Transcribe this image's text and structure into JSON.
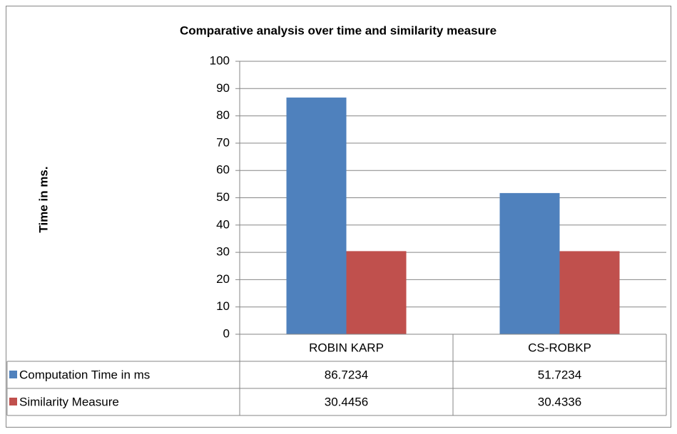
{
  "chart_data": {
    "type": "bar",
    "title": "Comparative analysis over time and similarity measure",
    "y_label": "Time in ms.",
    "categories": [
      "ROBIN KARP",
      "CS-ROBKP"
    ],
    "series": [
      {
        "name": "Computation Time in ms",
        "color": "#4f81bd",
        "values": [
          86.7234,
          51.7234
        ]
      },
      {
        "name": "Similarity Measure",
        "color": "#c0504d",
        "values": [
          30.4456,
          30.4336
        ]
      }
    ],
    "ylim": [
      0,
      100
    ],
    "yticks": [
      0,
      10,
      20,
      30,
      40,
      50,
      60,
      70,
      80,
      90,
      100
    ],
    "grid": true,
    "data_table": true
  }
}
